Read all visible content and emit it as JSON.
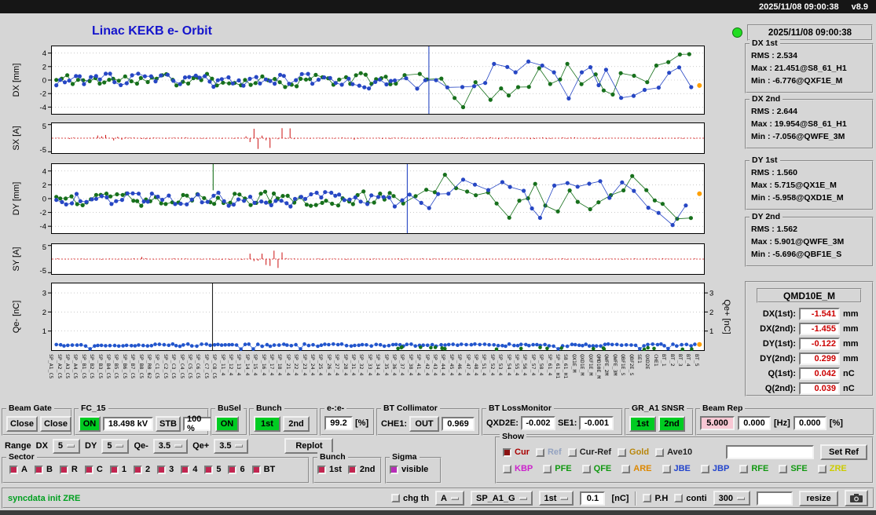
{
  "titlebar": {
    "datetime": "2025/11/08 09:00:38",
    "version": "v8.9"
  },
  "header": {
    "title": "Linac KEKB e- Orbit"
  },
  "statuspanel": {
    "timestamp": "2025/11/08 09:00:38",
    "stats": [
      {
        "name": "DX 1st",
        "lines": [
          "RMS : 2.534",
          "Max : 21.451@S8_61_H1",
          "Min : -6.776@QXF1E_M"
        ]
      },
      {
        "name": "DX 2nd",
        "lines": [
          "RMS : 2.644",
          "Max : 19.954@S8_61_H1",
          "Min : -7.056@QWFE_3M"
        ]
      },
      {
        "name": "DY 1st",
        "lines": [
          "RMS : 1.560",
          "Max : 5.715@QX1E_M",
          "Min : -5.958@QXD1E_M"
        ]
      },
      {
        "name": "DY 2nd",
        "lines": [
          "RMS : 1.562",
          "Max : 5.901@QWFE_3M",
          "Min : -5.696@QBF1E_S"
        ]
      }
    ],
    "monitor": {
      "title": "QMD10E_M",
      "rows": [
        {
          "label": "DX(1st):",
          "value": "-1.541",
          "unit": "mm"
        },
        {
          "label": "DX(2nd):",
          "value": "-1.455",
          "unit": "mm"
        },
        {
          "label": "DY(1st):",
          "value": "-0.122",
          "unit": "mm"
        },
        {
          "label": "DY(2nd):",
          "value": "0.299",
          "unit": "mm"
        },
        {
          "label": "Q(1st):",
          "value": "0.042",
          "unit": "nC"
        },
        {
          "label": "Q(2nd):",
          "value": "0.039",
          "unit": "nC"
        }
      ]
    }
  },
  "controls": {
    "beam_gate": {
      "title": "Beam Gate",
      "buttons": [
        "Close",
        "Close"
      ]
    },
    "fc15": {
      "title": "FC_15",
      "on": "ON",
      "kv": "18.498 kV",
      "stb": "STB",
      "pct": "100 %"
    },
    "busel": {
      "title": "BuSel",
      "on": "ON"
    },
    "bunch": {
      "title": "Bunch",
      "first": "1st",
      "second": "2nd"
    },
    "ee": {
      "title": "e-:e-",
      "value": "99.2",
      "unit": "[%]"
    },
    "bt_collimator": {
      "title": "BT Collimator",
      "che1_label": "CHE1:",
      "che1_state": "OUT",
      "value": "0.969"
    },
    "bt_loss": {
      "title": "BT LossMonitor",
      "qxd2e_label": "QXD2E:",
      "qxd2e": "-0.002",
      "se1_label": "SE1:",
      "se1": "-0.001"
    },
    "gr_snsr": {
      "title": "GR_A1 SNSR",
      "first": "1st",
      "second": "2nd"
    },
    "beam_rep": {
      "title": "Beam Rep",
      "rep": "5.000",
      "v2": "0.000",
      "hz": "[Hz]",
      "v3": "0.000",
      "pct": "[%]"
    },
    "range": {
      "label": "Range",
      "dx_label": "DX",
      "dx": "5",
      "dy_label": "DY",
      "dy": "5",
      "qem_label": "Qe-",
      "qem": "3.5",
      "qep_label": "Qe+",
      "qep": "3.5",
      "replot": "Replot"
    },
    "sector": {
      "title": "Sector",
      "items": [
        "A",
        "B",
        "R",
        "C",
        "1",
        "2",
        "3",
        "4",
        "5",
        "6",
        "BT"
      ],
      "check_color": "#c22550"
    },
    "bunch_sel": {
      "title": "Bunch",
      "items": [
        "1st",
        "2nd"
      ],
      "check_color": "#c22550"
    },
    "sigma": {
      "title": "Sigma",
      "visible": "visible",
      "check_color": "#b82db8"
    },
    "show": {
      "title": "Show",
      "set_ref": "Set Ref",
      "ref_input_value": "",
      "row1": [
        {
          "label": "Cur",
          "color": "#aa0000",
          "checked": true,
          "check_color": "#8b1212"
        },
        {
          "label": "Ref",
          "color": "#93a2c0",
          "checked": false
        },
        {
          "label": "Cur-Ref",
          "color": "#222222",
          "checked": false
        },
        {
          "label": "Gold",
          "color": "#b8860b",
          "checked": false
        },
        {
          "label": "Ave10",
          "color": "#222222",
          "checked": false
        }
      ],
      "row2": [
        {
          "label": "KBP",
          "color": "#cc22cc",
          "checked": false
        },
        {
          "label": "PFE",
          "color": "#119911",
          "checked": false
        },
        {
          "label": "QFE",
          "color": "#119911",
          "checked": false
        },
        {
          "label": "ARE",
          "color": "#dd8800",
          "checked": false
        },
        {
          "label": "JBE",
          "color": "#2244cc",
          "checked": false
        },
        {
          "label": "JBP",
          "color": "#2244cc",
          "checked": false
        },
        {
          "label": "RFE",
          "color": "#119911",
          "checked": false
        },
        {
          "label": "SFE",
          "color": "#119911",
          "checked": false
        },
        {
          "label": "ZRE",
          "color": "#cccc00",
          "checked": false
        }
      ]
    },
    "statusbar": {
      "message": "syncdata init ZRE",
      "chg_th": "chg th",
      "sel_a": "A",
      "sel_sp": "SP_A1_G",
      "sel_bunch": "1st",
      "threshold": "0.1",
      "threshold_unit": "[nC]",
      "ph": "P.H",
      "conti": "conti",
      "n300": "300",
      "aux_value": "",
      "resize": "resize"
    }
  },
  "x_axis_labels": [
    "SP_A1_C5",
    "SP_A2_C5",
    "SP_A3_C5",
    "SP_A4_C5",
    "SP_B1_C5",
    "SP_B2_C5",
    "SP_B3_C5",
    "SP_B4_C5",
    "SP_B5_C5",
    "SP_B6_C5",
    "SP_B7_C5",
    "SP_B8_C5",
    "SP_R0_62",
    "SP_C1_C5",
    "SP_C2_C5",
    "SP_C3_C5",
    "SP_C4_C5",
    "SP_C5_C5",
    "SP_C6_C5",
    "SP_C7_C5",
    "SP_C8_C5",
    "SP_11_4",
    "SP_12_4",
    "SP_13_4",
    "SP_14_4",
    "SP_15_4",
    "SP_16_4",
    "SP_17_4",
    "SP_18_4",
    "SP_21_4",
    "SP_22_4",
    "SP_23_4",
    "SP_24_4",
    "SP_25_4",
    "SP_26_4",
    "SP_27_4",
    "SP_28_4",
    "SP_31_4",
    "SP_32_4",
    "SP_33_4",
    "SP_34_4",
    "SP_35_4",
    "SP_36_4",
    "SP_37_4",
    "SP_38_4",
    "SP_41_4",
    "SP_42_4",
    "SP_43_4",
    "SP_44_4",
    "SP_45_4",
    "SP_46_4",
    "SP_47_4",
    "SP_48_4",
    "SP_51_4",
    "SP_52_4",
    "SP_53_4",
    "SP_54_4",
    "SP_55_4",
    "SP_56_4",
    "SP_57_4",
    "SP_58_4",
    "SP_61_4",
    "SP_61_H1",
    "S8_61_H1",
    "QX1E_M",
    "QXD1E_M",
    "QXF1E_M",
    "QMD10E_M",
    "QWFE_2M",
    "QWFE_3M",
    "QBF1E_S",
    "QBF2E_S",
    "SE1",
    "QXD2E",
    "CHE1",
    "BT_1",
    "BT_2",
    "BT_3",
    "BT_4",
    "BT_5"
  ],
  "chart_data": [
    {
      "id": "dx",
      "type": "scatter-line",
      "ylabel": "DX [mm]",
      "ylim": [
        -5,
        5
      ],
      "yticks": [
        4,
        2,
        0,
        -2,
        -4
      ],
      "series": [
        {
          "name": "bunch 1",
          "color": "#17701c",
          "seed": 11
        },
        {
          "name": "bunch 2",
          "color": "#2747c4",
          "seed": 23
        }
      ],
      "spikes": [
        {
          "x": 0.578,
          "color": "#2747c4"
        }
      ],
      "end_marker": {
        "x": 0.992,
        "y": -0.8,
        "color": "#ffa000"
      }
    },
    {
      "id": "sx",
      "type": "bar",
      "ylabel": "SX [A]",
      "ylim": [
        -5.5,
        5.5
      ],
      "yticks": [
        5,
        -5
      ],
      "color": "#cc1111",
      "seed": 31,
      "base_amp": 0.35,
      "clusters": [
        [
          0.07,
          0.12,
          1.3
        ],
        [
          0.295,
          0.37,
          4.2
        ],
        [
          0.45,
          0.47,
          0.9
        ]
      ]
    },
    {
      "id": "dy",
      "type": "scatter-line",
      "ylabel": "DY [mm]",
      "ylim": [
        -5,
        5
      ],
      "yticks": [
        4,
        2,
        0,
        -2,
        -4
      ],
      "series": [
        {
          "name": "bunch 1",
          "color": "#17701c",
          "seed": 47
        },
        {
          "name": "bunch 2",
          "color": "#2747c4",
          "seed": 59
        }
      ],
      "spikes": [
        {
          "x": 0.545,
          "color": "#2747c4"
        },
        {
          "x": 0.248,
          "color": "#17701c",
          "y0": 1.2
        }
      ],
      "end_marker": {
        "x": 0.992,
        "y": 0.7,
        "color": "#ffa000"
      }
    },
    {
      "id": "sy",
      "type": "bar",
      "ylabel": "SY [A]",
      "ylim": [
        -5.5,
        5.5
      ],
      "yticks": [
        5,
        -5
      ],
      "color": "#cc1111",
      "seed": 67,
      "base_amp": 0.3,
      "clusters": [
        [
          0.13,
          0.15,
          0.8
        ],
        [
          0.3,
          0.36,
          3.6
        ]
      ]
    },
    {
      "id": "qe",
      "type": "scatter-line",
      "ylabel": "Qe- [nC]",
      "ylabel_right": "Qe+ [nC]",
      "ylim": [
        0,
        3.5
      ],
      "yticks": [
        3,
        2,
        1
      ],
      "blue": {
        "color": "#2255cc",
        "seed": 71,
        "level": 0.24
      },
      "green": {
        "color": "#17701c",
        "seed": 83
      },
      "spikes": [
        {
          "x": 0.247,
          "color": "#222222"
        }
      ],
      "end_marker": {
        "x": 0.992,
        "y": 0.3,
        "color": "#ffa000"
      }
    }
  ],
  "colors": {
    "led_green": "#22dd22",
    "title_blue": "#1515cc",
    "on_green": "#00cc22",
    "pink_field": "#f8c8d4",
    "value_red": "#cc0000",
    "status_green": "#00a020"
  }
}
